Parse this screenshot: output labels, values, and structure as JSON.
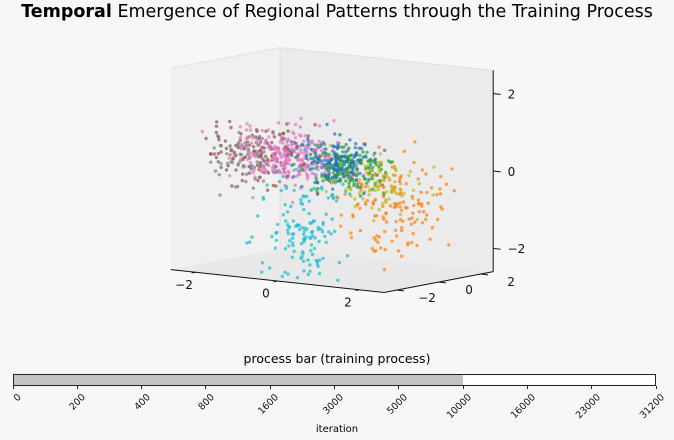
{
  "header": {
    "title_bold": "Temporal",
    "title_rest": "Emergence of Regional Patterns through the Training Process"
  },
  "chart_data": {
    "type": "scatter",
    "projection": "3d",
    "axes": {
      "x": {
        "ticks": [
          -2,
          0,
          2
        ]
      },
      "y": {
        "ticks": [
          -2,
          0,
          2
        ]
      },
      "z": {
        "ticks": [
          -2,
          0,
          2
        ]
      }
    },
    "grid": false,
    "clusters": [
      {
        "color": "#e377c2",
        "center": [
          -0.9,
          -0.4,
          0.3
        ],
        "spread": [
          0.55,
          0.45,
          0.35
        ],
        "count": 260
      },
      {
        "color": "#1f77b4",
        "center": [
          0.2,
          -0.3,
          0.25
        ],
        "spread": [
          0.45,
          0.35,
          0.3
        ],
        "count": 200
      },
      {
        "color": "#2ca02c",
        "center": [
          0.5,
          -0.2,
          0.05
        ],
        "spread": [
          0.45,
          0.35,
          0.3
        ],
        "count": 140
      },
      {
        "color": "#8c564b",
        "center": [
          -1.4,
          -0.6,
          0.35
        ],
        "spread": [
          0.6,
          0.45,
          0.35
        ],
        "count": 120
      },
      {
        "color": "#17becf",
        "center": [
          -0.2,
          -1.0,
          -1.4
        ],
        "spread": [
          0.45,
          0.35,
          0.75
        ],
        "count": 140
      },
      {
        "color": "#ff7f0e",
        "center": [
          1.2,
          0.6,
          -0.9
        ],
        "spread": [
          0.55,
          0.45,
          0.75
        ],
        "count": 140
      },
      {
        "color": "#bcbd22",
        "center": [
          1.0,
          0.2,
          -0.4
        ],
        "spread": [
          0.5,
          0.35,
          0.4
        ],
        "count": 90
      },
      {
        "color": "#7f7f7f",
        "center": [
          -1.6,
          -0.9,
          0.2
        ],
        "spread": [
          0.45,
          0.35,
          0.3
        ],
        "count": 70
      }
    ]
  },
  "process_bar": {
    "title": "process bar (training process)",
    "ticks": [
      "0",
      "200",
      "400",
      "800",
      "1600",
      "3000",
      "5000",
      "10000",
      "16000",
      "23000",
      "31200"
    ],
    "current_index": 7,
    "xlabel": "iteration"
  }
}
